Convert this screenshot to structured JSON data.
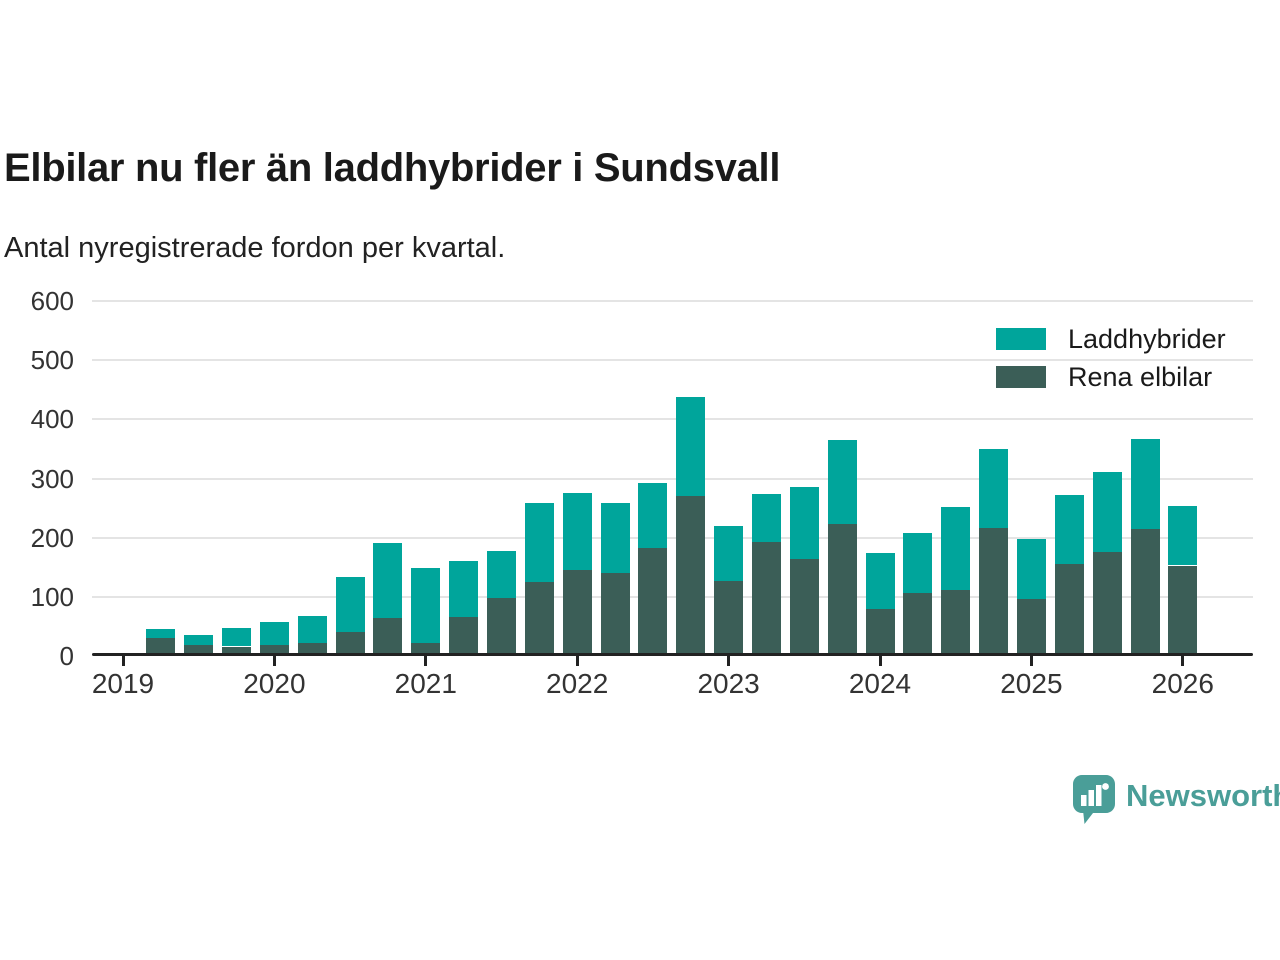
{
  "title": "Elbilar nu fler än laddhybrider i Sundsvall",
  "subtitle": "Antal nyregistrerade fordon per kvartal.",
  "legend": {
    "items": [
      {
        "label": "Laddhybrider",
        "color": "#00a59b"
      },
      {
        "label": "Rena elbilar",
        "color": "#3b5e57"
      }
    ]
  },
  "branding": {
    "name": "Newsworthy",
    "color": "#4a9e98"
  },
  "chart_data": {
    "type": "bar",
    "stacked": true,
    "title": "Elbilar nu fler än laddhybrider i Sundsvall",
    "subtitle": "Antal nyregistrerade fordon per kvartal.",
    "xlabel": "",
    "ylabel": "",
    "ylim": [
      0,
      600
    ],
    "yticks": [
      0,
      100,
      200,
      300,
      400,
      500,
      600
    ],
    "grid": "horizontal",
    "legend_position": "top-right",
    "categories": [
      "2019 Q2",
      "2019 Q3",
      "2019 Q4",
      "2020 Q1",
      "2020 Q2",
      "2020 Q3",
      "2020 Q4",
      "2021 Q1",
      "2021 Q2",
      "2021 Q3",
      "2021 Q4",
      "2022 Q1",
      "2022 Q2",
      "2022 Q3",
      "2022 Q4",
      "2023 Q1",
      "2023 Q2",
      "2023 Q3",
      "2023 Q4",
      "2024 Q1",
      "2024 Q2",
      "2024 Q3",
      "2024 Q4",
      "2025 Q1",
      "2025 Q2",
      "2025 Q3",
      "2025 Q4",
      "2026 Q1"
    ],
    "x_year_labels": [
      "2019",
      "2020",
      "2021",
      "2022",
      "2023",
      "2024",
      "2025",
      "2026"
    ],
    "stack_bottom_series": "Rena elbilar",
    "series": [
      {
        "name": "Laddhybrider",
        "color": "#00a59b",
        "values": [
          16,
          17,
          32,
          38,
          45,
          93,
          126,
          127,
          94,
          79,
          134,
          130,
          117,
          109,
          166,
          92,
          82,
          121,
          143,
          96,
          101,
          141,
          134,
          100,
          116,
          135,
          152,
          100
        ]
      },
      {
        "name": "Rena elbilar",
        "color": "#3b5e57",
        "values": [
          30,
          18,
          16,
          19,
          22,
          40,
          65,
          22,
          66,
          98,
          125,
          145,
          141,
          183,
          271,
          127,
          192,
          164,
          223,
          79,
          107,
          111,
          216,
          97,
          156,
          176,
          215,
          153
        ]
      }
    ],
    "totals": [
      46,
      35,
      48,
      57,
      67,
      133,
      191,
      149,
      160,
      177,
      259,
      275,
      258,
      292,
      437,
      219,
      274,
      285,
      366,
      175,
      208,
      252,
      350,
      197,
      272,
      311,
      367,
      253
    ]
  }
}
